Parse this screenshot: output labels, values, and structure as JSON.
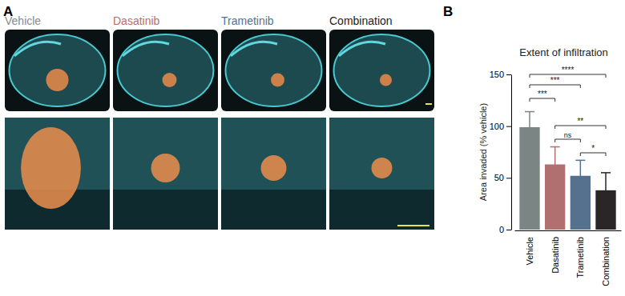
{
  "chart_data": {
    "type": "bar",
    "title": "Extent of infiltration",
    "y_label": "Area invaded (% vehicle)",
    "categories": [
      "Vehicle",
      "Dasatinib",
      "Trametinib",
      "Combination"
    ],
    "values": [
      99,
      63,
      52,
      38
    ],
    "errors": [
      15,
      17,
      15,
      17
    ],
    "colors": [
      "#7b8584",
      "#b0706f",
      "#56718e",
      "#2a2527"
    ],
    "ylim": [
      0,
      150
    ],
    "yticks": [
      0,
      50,
      100,
      150
    ],
    "comparisons": [
      {
        "from": "Vehicle",
        "to": "Combination",
        "label": "****"
      },
      {
        "from": "Vehicle",
        "to": "Trametinib",
        "label": "***"
      },
      {
        "from": "Vehicle",
        "to": "Dasatinib",
        "label": "***"
      },
      {
        "from": "Dasatinib",
        "to": "Combination",
        "label": "**"
      },
      {
        "from": "Dasatinib",
        "to": "Trametinib",
        "label": "ns"
      },
      {
        "from": "Trametinib",
        "to": "Combination",
        "label": "*"
      }
    ]
  },
  "figure": {
    "panel_labels": [
      "A",
      "B"
    ],
    "image_titles": [
      "Vehicle",
      "Dasatinib",
      "Trametinib",
      "Combination"
    ],
    "image_title_colors": [
      "#8a8a8a",
      "#b5706f",
      "#55708d",
      "#222222"
    ]
  }
}
